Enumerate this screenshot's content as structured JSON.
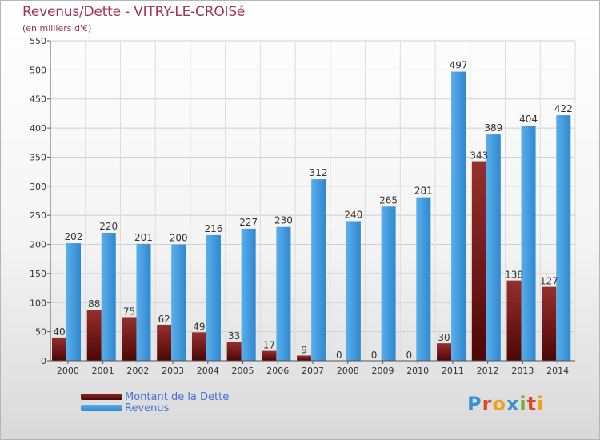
{
  "header": {
    "title": "Revenus/Dette - VITRY-LE-CROISé",
    "subtitle": "(en milliers d'€)"
  },
  "legend": [
    {
      "label": "Montant de la Dette",
      "color": "#7a1414"
    },
    {
      "label": "Revenus",
      "color": "#3c96dc"
    }
  ],
  "logo": {
    "text": "Proxiti",
    "letters": [
      {
        "ch": "P",
        "color": "#3d8fd6"
      },
      {
        "ch": "r",
        "color": "#e2432b"
      },
      {
        "ch": "o",
        "color": "#f0a11c"
      },
      {
        "ch": "x",
        "color": "#3d8fd6"
      },
      {
        "ch": "i",
        "color": "#6bb52f"
      },
      {
        "ch": "t",
        "color": "#e2432b"
      },
      {
        "ch": "i",
        "color": "#f0a11c"
      }
    ]
  },
  "chart_data": {
    "type": "bar",
    "categories": [
      "2000",
      "2001",
      "2002",
      "2003",
      "2004",
      "2005",
      "2006",
      "2007",
      "2008",
      "2009",
      "2010",
      "2011",
      "2012",
      "2013",
      "2014"
    ],
    "series": [
      {
        "name": "Montant de la Dette",
        "color": "#7a1414",
        "values": [
          40,
          88,
          75,
          62,
          49,
          33,
          17,
          9,
          0,
          0,
          0,
          30,
          343,
          138,
          127
        ]
      },
      {
        "name": "Revenus",
        "color": "#3c96dc",
        "values": [
          202,
          220,
          201,
          200,
          216,
          227,
          230,
          312,
          240,
          265,
          281,
          497,
          389,
          404,
          422
        ]
      }
    ],
    "yticks": [
      0,
      50,
      100,
      150,
      200,
      250,
      300,
      350,
      400,
      450,
      500,
      550
    ],
    "ylim": [
      0,
      550
    ],
    "grid": true
  }
}
